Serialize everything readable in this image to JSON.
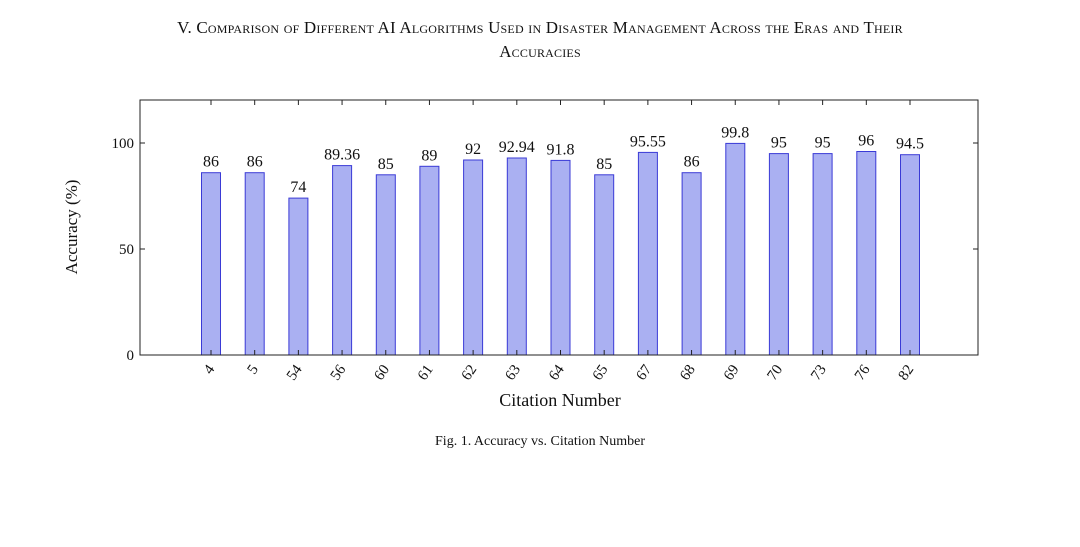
{
  "heading": {
    "line1": "V. Comparison of Different AI Algorithms Used in Disaster Management Across the Eras and Their",
    "line2": "Accuracies"
  },
  "caption": "Fig. 1.  Accuracy vs. Citation Number",
  "chart_data": {
    "type": "bar",
    "title": "",
    "xlabel": "Citation Number",
    "ylabel": "Accuracy (%)",
    "ylim": [
      0,
      100
    ],
    "yticks": [
      0,
      50,
      100
    ],
    "categories": [
      "4",
      "5",
      "54",
      "56",
      "60",
      "61",
      "62",
      "63",
      "64",
      "65",
      "67",
      "68",
      "69",
      "70",
      "73",
      "76",
      "82"
    ],
    "values": [
      86,
      86,
      74,
      89.36,
      85,
      89,
      92,
      92.94,
      91.8,
      85,
      95.55,
      86,
      99.8,
      95,
      95,
      96,
      94.5
    ],
    "value_labels": [
      "86",
      "86",
      "74",
      "89.36",
      "85",
      "89",
      "92",
      "92.94",
      "91.8",
      "85",
      "95.55",
      "86",
      "99.8",
      "95",
      "95",
      "96",
      "94.5"
    ],
    "grid": false,
    "bar_fill": "#aab0f2",
    "bar_stroke": "#3a3ad6"
  }
}
